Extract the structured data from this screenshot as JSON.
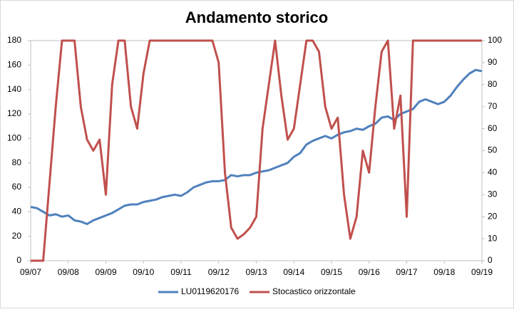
{
  "chart_data": {
    "type": "line",
    "title": "Andamento storico",
    "categories": [
      "09/07",
      null,
      null,
      null,
      null,
      null,
      "09/08",
      null,
      null,
      null,
      null,
      null,
      "09/09",
      null,
      null,
      null,
      null,
      null,
      "09/10",
      null,
      null,
      null,
      null,
      null,
      "09/11",
      null,
      null,
      null,
      null,
      null,
      "09/12",
      null,
      null,
      null,
      null,
      null,
      "09/13",
      null,
      null,
      null,
      null,
      null,
      "09/14",
      null,
      null,
      null,
      null,
      null,
      "09/15",
      null,
      null,
      null,
      null,
      null,
      "09/16",
      null,
      null,
      null,
      null,
      null,
      "09/17",
      null,
      null,
      null,
      null,
      null,
      "09/18",
      null,
      null,
      null,
      null,
      null,
      "09/19"
    ],
    "series": [
      {
        "name": "LU0119620176",
        "color": "#4f81bd",
        "values": [
          44,
          43,
          40,
          37,
          38,
          36,
          37,
          33,
          32,
          30,
          33,
          35,
          37,
          39,
          42,
          45,
          46,
          46,
          48,
          49,
          50,
          52,
          53,
          54,
          53,
          56,
          60,
          62,
          64,
          65,
          65,
          66,
          70,
          69,
          70,
          70,
          72,
          73,
          74,
          76,
          78,
          80,
          85,
          88,
          95,
          98,
          100,
          102,
          100,
          103,
          105,
          106,
          108,
          107,
          110,
          112,
          117,
          118,
          115,
          120,
          122,
          124,
          130,
          132,
          130,
          128,
          130,
          135,
          142,
          148,
          153,
          156,
          155
        ]
      },
      {
        "name": "Stocastico orizzontale",
        "color": "#c0504d",
        "axis": "y2",
        "values": [
          0,
          0,
          0,
          35,
          70,
          100,
          100,
          100,
          70,
          55,
          50,
          55,
          30,
          80,
          100,
          100,
          70,
          60,
          85,
          100,
          100,
          100,
          100,
          100,
          100,
          100,
          100,
          100,
          100,
          100,
          90,
          40,
          15,
          10,
          12,
          15,
          20,
          60,
          80,
          100,
          75,
          55,
          60,
          80,
          100,
          100,
          95,
          70,
          60,
          65,
          30,
          10,
          20,
          50,
          40,
          70,
          95,
          100,
          60,
          75,
          20,
          100,
          100,
          100,
          100,
          100,
          100,
          100,
          100,
          100,
          100,
          100,
          100
        ]
      }
    ],
    "ylim": [
      0,
      180
    ],
    "yticks": [
      0,
      20,
      40,
      60,
      80,
      100,
      120,
      140,
      160,
      180
    ],
    "y2lim": [
      0,
      100
    ],
    "y2ticks": [
      0,
      10,
      20,
      30,
      40,
      50,
      60,
      70,
      80,
      90,
      100
    ],
    "grid": false,
    "legend": "bottom"
  }
}
